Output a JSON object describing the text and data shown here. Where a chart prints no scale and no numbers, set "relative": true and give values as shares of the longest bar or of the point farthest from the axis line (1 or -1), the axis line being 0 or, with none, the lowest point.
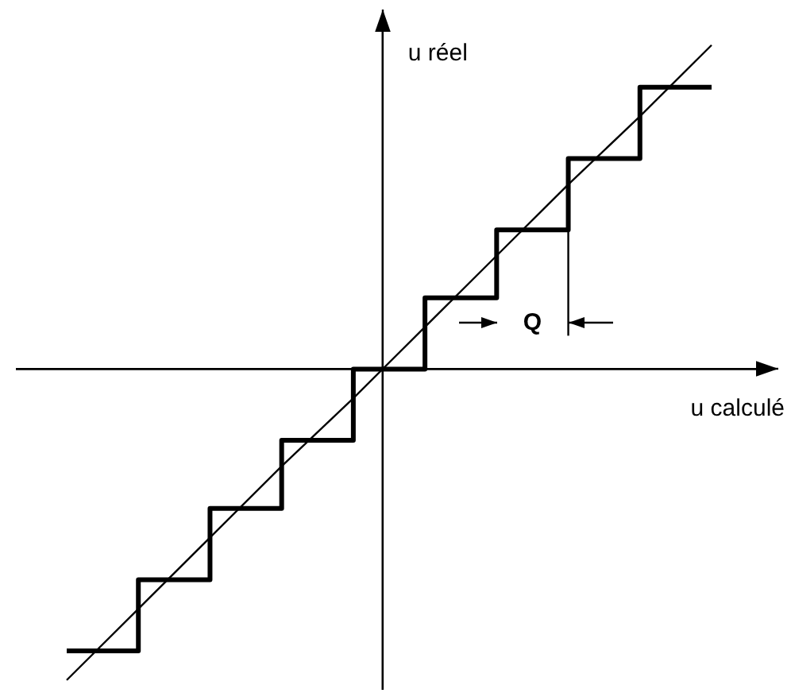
{
  "chart_data": {
    "type": "step",
    "xlabel": "u calculé",
    "ylabel": "u réel",
    "relative": true,
    "tick_labels": false,
    "legend": false,
    "marker": "none",
    "line_style": "solid",
    "annotations": [
      "Q"
    ],
    "categories": [
      null,
      null,
      null,
      null,
      null,
      null,
      null,
      null,
      null,
      null
    ],
    "series": [
      {
        "color": "#000000",
        "values": [
          -0.87,
          -0.65,
          -0.43,
          -0.22,
          0,
          0.22,
          0.43,
          0.65,
          0.87,
          0.87
        ]
      },
      {
        "type": "line",
        "color": "#000000",
        "values": [
          -0.96,
          -0.74,
          -0.52,
          -0.3,
          -0.09,
          0.13,
          0.35,
          0.57,
          0.78,
          1
        ]
      }
    ]
  }
}
